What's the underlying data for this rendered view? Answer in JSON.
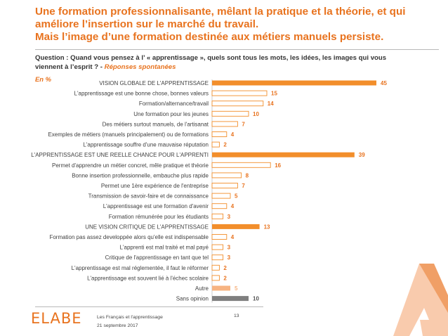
{
  "header": {
    "title_lines": [
      "Une formation professionnalisante, mêlant la pratique et la théorie, et qui",
      "améliore l’insertion sur le marché du travail.",
      "Mais l’image d’une formation destinée aux métiers manuels persiste."
    ]
  },
  "question": {
    "text": "Question : Quand vous pensez à l’ « apprentissage », quels sont tous les mots, les idées, les images qui vous viennent à l’esprit ? -",
    "subtext": "Réponses spontanées"
  },
  "unit_label": "En  %",
  "colors": {
    "orange": "#f28e2b",
    "orange_text": "#e8731f",
    "light_orange": "#f7b482",
    "gray": "#7f7f7f"
  },
  "chart_data": {
    "type": "bar",
    "orientation": "horizontal",
    "xlim": [
      0,
      45
    ],
    "grid": false,
    "categories": [
      "VISION GLOBALE DE L'APPRENTISSAGE",
      "L'apprentissage est une bonne chose, bonnes valeurs",
      "Formation/alternance/travail",
      "Une formation pour les jeunes",
      "Des métiers surtout manuels, de l'artisanat",
      "Exemples de métiers (manuels principalement) ou de formations",
      "L'apprentissage souffre d'une mauvaise réputation",
      "L'APPRENTISSAGE EST UNE REELLE CHANCE POUR L'APPRENTI",
      "Permet d'apprendre un métier concret, mêle pratique et théorie",
      "Bonne insertion professionnelle, embauche plus rapide",
      "Permet une 1ère expérience de l'entreprise",
      "Transmission de savoir-faire et de connaissance",
      "L'apprentissage est une formation d'avenir",
      "Formation rémunérée pour les étudiants",
      "UNE VISION CRITIQUE DE L'APPRENTISSAGE",
      "Formation pas assez developpée alors qu'elle est indispensable",
      "L'apprenti est mal traité et mal payé",
      "Critique de l'apprentissage en tant que tel",
      "L'apprentissage est mal réglementée, il faut le réformer",
      "L'apprentissage est souvent lié à l'échec scolaire",
      "Autre",
      "Sans opinion"
    ],
    "values": [
      45,
      15,
      14,
      10,
      7,
      4,
      2,
      39,
      16,
      8,
      7,
      5,
      4,
      3,
      13,
      4,
      3,
      3,
      2,
      2,
      5,
      10
    ],
    "value_labels": [
      "45",
      "15",
      "14",
      "10",
      "7",
      "4",
      "2",
      "39",
      "16",
      "8",
      "7",
      "5",
      "4",
      "3",
      "13",
      "4",
      "3",
      "3",
      "2",
      "2",
      "5",
      "10"
    ],
    "styles": [
      "main",
      "sub",
      "sub",
      "sub",
      "sub",
      "sub",
      "sub",
      "main",
      "sub",
      "sub",
      "sub",
      "sub",
      "sub",
      "sub",
      "main",
      "sub",
      "sub",
      "sub",
      "sub",
      "sub",
      "other",
      "none"
    ]
  },
  "footer": {
    "logo": "ELABE",
    "line1": "Les Français et l'apprentissage",
    "line2": "21 septembre 2017",
    "page": "13"
  }
}
